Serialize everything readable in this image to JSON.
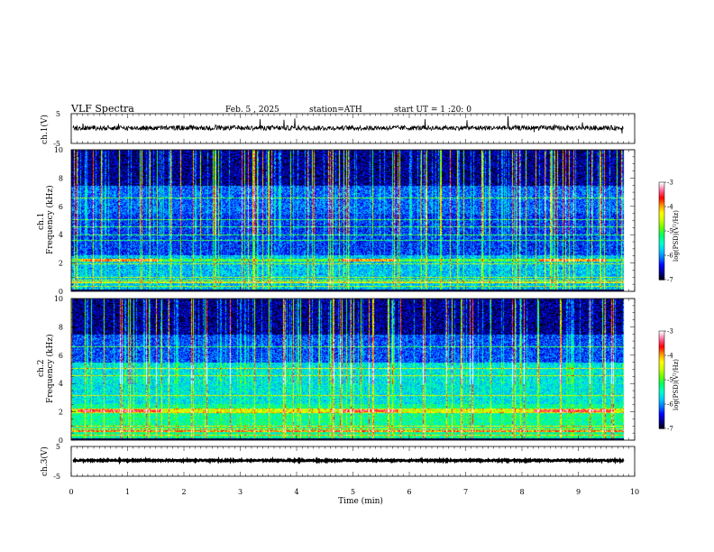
{
  "header": {
    "title": "VLF Spectra",
    "date": "Feb. 5 , 2025",
    "station": "station=ATH",
    "start": "start UT =  1 :20: 0"
  },
  "panel_labels": {
    "ch1_wave": "ch.1(V)",
    "ch1_spec_a": "ch.1",
    "ch1_spec_b": "Frequency (kHz)",
    "ch2_spec_a": "ch.2",
    "ch2_spec_b": "Frequency (kHz)",
    "ch3_wave": "ch.3(V)",
    "colorbar_label": "log(PSD)(V²/Hz)"
  },
  "colors": {
    "spectrogram_scale": [
      "#000000",
      "#00008b",
      "#0000ff",
      "#0077ff",
      "#00ccff",
      "#00ffcc",
      "#00ff66",
      "#66ff00",
      "#ccff00",
      "#ffff00",
      "#ff9900",
      "#ff0000",
      "#ff6699",
      "#ffffff"
    ]
  },
  "chart_data": [
    {
      "type": "line",
      "name": "ch1-waveform",
      "ylabel": "ch.1(V)",
      "ylim": [
        -5,
        5
      ],
      "yticks": [
        "5",
        "-5"
      ],
      "xlim": [
        0,
        10
      ],
      "description_level": 0.2
    },
    {
      "type": "heatmap",
      "name": "ch1-spectrogram",
      "ylabel": "Frequency (kHz)",
      "ylim": [
        0,
        10
      ],
      "yticks": [
        "0",
        "2",
        "4",
        "6",
        "8",
        "10"
      ],
      "xlim": [
        0,
        10
      ],
      "data_end_min": 9.8,
      "bands_khz": [
        0.4,
        0.8,
        1.0,
        2.0,
        3.6,
        4.0,
        4.6,
        5.1,
        6.6
      ],
      "strong_band_khz": 2.2,
      "strong_band_segments_min": [
        [
          0.15,
          1.55
        ],
        [
          4.8,
          5.75
        ],
        [
          8.3,
          9.5
        ]
      ],
      "colorbar": {
        "min": -7,
        "max": -3,
        "ticks": [
          "-3",
          "-4",
          "-5",
          "-6",
          "-7"
        ]
      }
    },
    {
      "type": "heatmap",
      "name": "ch2-spectrogram",
      "ylabel": "Frequency (kHz)",
      "ylim": [
        0,
        10
      ],
      "yticks": [
        "0",
        "2",
        "4",
        "6",
        "8",
        "10"
      ],
      "xlim": [
        0,
        10
      ],
      "data_end_min": 9.8,
      "bands_khz": [
        0.4,
        0.8,
        1.0,
        2.0,
        2.2,
        3.2,
        4.6,
        5.1,
        6.6
      ],
      "strong_band_khz": 2.1,
      "strong_band_segments_min": [
        [
          0.1,
          1.6
        ],
        [
          4.8,
          5.8
        ],
        [
          8.2,
          9.6
        ]
      ],
      "colorbar": {
        "min": -7,
        "max": -3,
        "ticks": [
          "-3",
          "-4",
          "-5",
          "-6",
          "-7"
        ]
      }
    },
    {
      "type": "line",
      "name": "ch3-waveform",
      "ylabel": "ch.3(V)",
      "ylim": [
        -5,
        5
      ],
      "yticks": [
        "5",
        "-5"
      ],
      "xlim": [
        0,
        10
      ],
      "level": 0.3
    }
  ],
  "x_axis": {
    "label": "Time (min)",
    "ticks": [
      "0",
      "1",
      "2",
      "3",
      "4",
      "5",
      "6",
      "7",
      "8",
      "9",
      "10"
    ],
    "range": [
      0,
      10
    ]
  }
}
